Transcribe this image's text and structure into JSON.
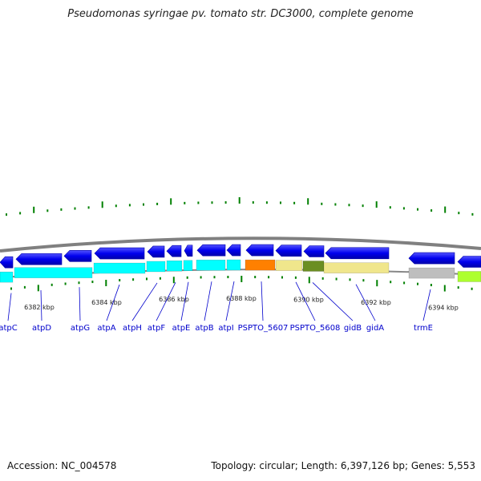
{
  "title": "Pseudomonas syringae pv. tomato str. DC3000, complete genome",
  "accession_text": "Accession: NC_004578",
  "topology_text": "Topology: circular; Length: 6,397,126 bp; Genes: 5,553",
  "tick_labels": [
    "6382 kbp",
    "6384 kbp",
    "6386 kbp",
    "6388 kbp",
    "6390 kbp",
    "6392 kbp",
    "6394 kbp"
  ],
  "gene_labels": [
    "atpC",
    "atpD",
    "atpG",
    "atpA",
    "atpH",
    "atpF",
    "atpE",
    "atpB",
    "atpI",
    "PSPTO_5607",
    "PSPTO_5608",
    "gidB",
    "gidA",
    "trmE"
  ],
  "colors": {
    "cds": "#0000ee",
    "backbone": "#888888",
    "category_cyan": "#00ffff",
    "category_orange": "#ff8000",
    "category_khaki": "#f0e68c",
    "category_olive": "#6b8e23",
    "category_gray": "#bebebe",
    "category_lime": "#adff2f",
    "tick": "#008000",
    "label": "#0000cc"
  }
}
